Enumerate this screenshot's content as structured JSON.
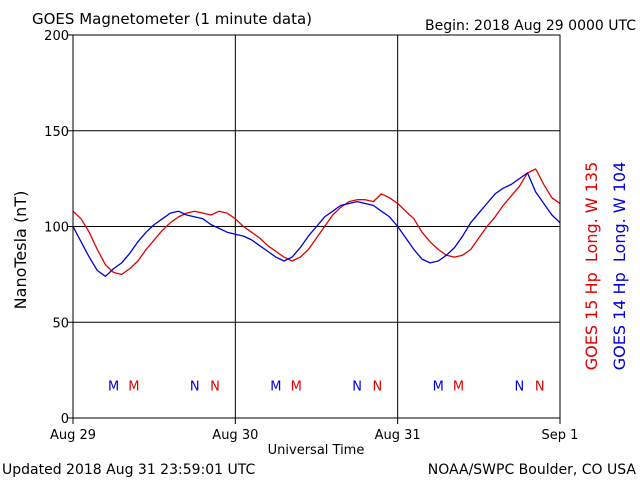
{
  "header": {
    "title": "GOES Magnetometer (1 minute data)",
    "begin": "Begin:  2018 Aug 29 0000 UTC"
  },
  "footer": {
    "updated": "Updated 2018 Aug 31 23:59:01 UTC",
    "credit": "NOAA/SWPC Boulder, CO USA"
  },
  "colors": {
    "goes15": "#e00000",
    "goes14": "#0000dd",
    "frame": "#000000"
  },
  "chart_data": {
    "type": "line",
    "title": "GOES Magnetometer (1 minute data)",
    "xlabel": "Universal Time",
    "ylabel": "NanoTesla (nT)",
    "ylim": [
      0,
      200
    ],
    "xlim": [
      0,
      3
    ],
    "yticks": [
      0,
      50,
      100,
      150,
      200
    ],
    "xticks": [
      {
        "pos": 0,
        "label": "Aug 29"
      },
      {
        "pos": 1,
        "label": "Aug 30"
      },
      {
        "pos": 2,
        "label": "Aug 31"
      },
      {
        "pos": 3,
        "label": "Sep 1"
      }
    ],
    "grid": true,
    "legend": "right side, rotated vertical",
    "series": [
      {
        "name": "GOES 15 Hp  Long. W 135",
        "color": "#e00000",
        "x": [
          0,
          0.05,
          0.1,
          0.15,
          0.2,
          0.25,
          0.3,
          0.35,
          0.4,
          0.45,
          0.5,
          0.55,
          0.6,
          0.65,
          0.7,
          0.75,
          0.8,
          0.85,
          0.9,
          0.95,
          1.0,
          1.05,
          1.1,
          1.15,
          1.2,
          1.25,
          1.3,
          1.35,
          1.4,
          1.45,
          1.5,
          1.55,
          1.6,
          1.65,
          1.7,
          1.75,
          1.8,
          1.85,
          1.9,
          1.95,
          2.0,
          2.05,
          2.1,
          2.15,
          2.2,
          2.25,
          2.3,
          2.35,
          2.4,
          2.45,
          2.5,
          2.55,
          2.6,
          2.65,
          2.7,
          2.75,
          2.8,
          2.85,
          2.9,
          2.95,
          3.0
        ],
        "values": [
          108,
          104,
          97,
          88,
          80,
          76,
          75,
          78,
          82,
          88,
          93,
          98,
          102,
          105,
          107,
          108,
          107,
          106,
          108,
          107,
          104,
          100,
          97,
          94,
          90,
          87,
          84,
          82,
          84,
          88,
          94,
          100,
          106,
          110,
          113,
          114,
          114,
          113,
          117,
          115,
          112,
          108,
          104,
          97,
          92,
          88,
          85,
          84,
          85,
          88,
          94,
          100,
          105,
          111,
          116,
          121,
          128,
          130,
          122,
          115,
          112
        ]
      },
      {
        "name": "GOES 14 Hp  Long. W 104",
        "color": "#0000dd",
        "x": [
          0,
          0.05,
          0.1,
          0.15,
          0.2,
          0.25,
          0.3,
          0.35,
          0.4,
          0.45,
          0.5,
          0.55,
          0.6,
          0.65,
          0.7,
          0.75,
          0.8,
          0.85,
          0.9,
          0.95,
          1.0,
          1.05,
          1.1,
          1.15,
          1.2,
          1.25,
          1.3,
          1.35,
          1.4,
          1.45,
          1.5,
          1.55,
          1.6,
          1.65,
          1.7,
          1.75,
          1.8,
          1.85,
          1.9,
          1.95,
          2.0,
          2.05,
          2.1,
          2.15,
          2.2,
          2.25,
          2.3,
          2.35,
          2.4,
          2.45,
          2.5,
          2.55,
          2.6,
          2.65,
          2.7,
          2.75,
          2.8,
          2.85,
          2.9,
          2.95,
          3.0
        ],
        "values": [
          100,
          92,
          84,
          77,
          74,
          78,
          81,
          86,
          92,
          97,
          101,
          104,
          107,
          108,
          106,
          105,
          104,
          101,
          99,
          97,
          96,
          95,
          93,
          90,
          87,
          84,
          82,
          84,
          89,
          95,
          100,
          105,
          108,
          111,
          112,
          113,
          112,
          111,
          108,
          105,
          100,
          94,
          88,
          83,
          81,
          82,
          85,
          89,
          95,
          102,
          107,
          112,
          117,
          120,
          122,
          125,
          128,
          118,
          112,
          106,
          102
        ]
      }
    ],
    "annotations": {
      "labels": [
        {
          "x": 0.25,
          "text": "M",
          "series": "GOES 14 Hp  Long. W 104"
        },
        {
          "x": 0.375,
          "text": "M",
          "series": "GOES 15 Hp  Long. W 135"
        },
        {
          "x": 0.75,
          "text": "N",
          "series": "GOES 14 Hp  Long. W 104"
        },
        {
          "x": 0.875,
          "text": "N",
          "series": "GOES 15 Hp  Long. W 135"
        },
        {
          "x": 1.25,
          "text": "M",
          "series": "GOES 14 Hp  Long. W 104"
        },
        {
          "x": 1.375,
          "text": "M",
          "series": "GOES 15 Hp  Long. W 135"
        },
        {
          "x": 1.75,
          "text": "N",
          "series": "GOES 14 Hp  Long. W 104"
        },
        {
          "x": 1.875,
          "text": "N",
          "series": "GOES 15 Hp  Long. W 135"
        },
        {
          "x": 2.25,
          "text": "M",
          "series": "GOES 14 Hp  Long. W 104"
        },
        {
          "x": 2.375,
          "text": "M",
          "series": "GOES 15 Hp  Long. W 135"
        },
        {
          "x": 2.75,
          "text": "N",
          "series": "GOES 14 Hp  Long. W 104"
        },
        {
          "x": 2.875,
          "text": "N",
          "series": "GOES 15 Hp  Long. W 135"
        }
      ],
      "y": 17
    }
  }
}
